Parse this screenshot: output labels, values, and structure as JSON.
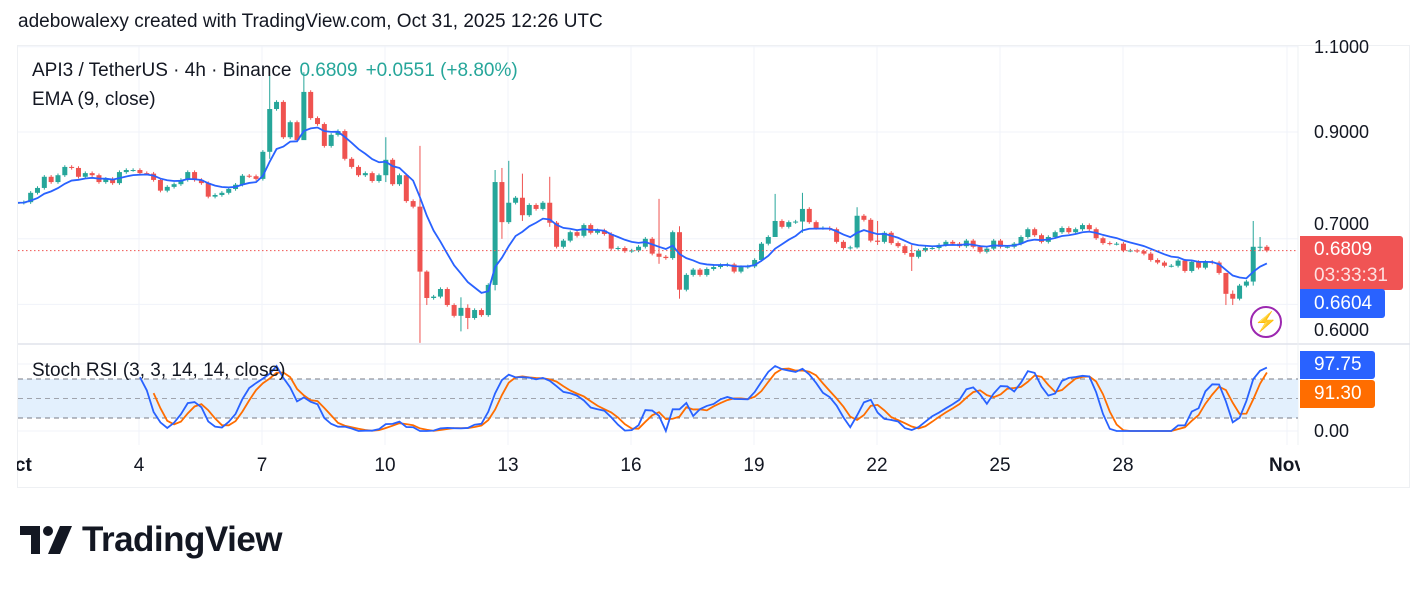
{
  "credit": "adebowalexy created with TradingView.com, Oct 31, 2025 12:26 UTC",
  "legend": {
    "symbol": "API3 / TetherUS · 4h · Binance",
    "last": "0.6809",
    "change": "+0.0551 (+8.80%)",
    "ema": "EMA (9, close)",
    "stoch": "Stoch RSI (3, 3, 14, 14, close)"
  },
  "price_labels": {
    "last": "0.6809",
    "countdown": "03:33:31",
    "ema": "0.6604",
    "stoch_k": "97.75",
    "stoch_d": "91.30",
    "stoch_zero": "0.00"
  },
  "logo": "TradingView",
  "colors": {
    "up": "#26a69a",
    "down": "#ef5350",
    "ema": "#2962ff",
    "stoch_k": "#2962ff",
    "stoch_d": "#ff6d00",
    "band": "#e3f0fd",
    "alert": "#9c27b0"
  },
  "chart_data": {
    "type": "candlestick",
    "interval": "4h",
    "price_scale": "log",
    "start": "Oct 1, 2025",
    "price_ticks": [
      {
        "label": "1.1000",
        "value": 1.1
      },
      {
        "label": "0.9000",
        "value": 0.9
      },
      {
        "label": "0.7000",
        "value": 0.7
      },
      {
        "label": "0.6000",
        "value": 0.6
      }
    ],
    "time_ticks": [
      {
        "label": "Oct",
        "day": 1
      },
      {
        "label": "4",
        "day": 4
      },
      {
        "label": "7",
        "day": 7
      },
      {
        "label": "10",
        "day": 10
      },
      {
        "label": "13",
        "day": 13
      },
      {
        "label": "16",
        "day": 16
      },
      {
        "label": "19",
        "day": 19
      },
      {
        "label": "22",
        "day": 22
      },
      {
        "label": "25",
        "day": 25
      },
      {
        "label": "28",
        "day": 28
      },
      {
        "label": "Nov",
        "day": 32
      }
    ],
    "close": [
      0.762,
      0.763,
      0.78,
      0.789,
      0.81,
      0.8,
      0.813,
      0.829,
      0.827,
      0.81,
      0.817,
      0.813,
      0.8,
      0.806,
      0.798,
      0.819,
      0.823,
      0.823,
      0.817,
      0.816,
      0.804,
      0.784,
      0.791,
      0.796,
      0.804,
      0.819,
      0.804,
      0.798,
      0.773,
      0.776,
      0.78,
      0.787,
      0.795,
      0.812,
      0.811,
      0.806,
      0.859,
      0.95,
      0.966,
      0.889,
      0.921,
      0.883,
      0.989,
      0.93,
      0.917,
      0.871,
      0.894,
      0.902,
      0.845,
      0.829,
      0.813,
      0.817,
      0.802,
      0.813,
      0.843,
      0.796,
      0.813,
      0.765,
      0.755,
      0.648,
      0.609,
      0.611,
      0.622,
      0.599,
      0.584,
      0.595,
      0.581,
      0.592,
      0.585,
      0.628,
      0.8,
      0.728,
      0.762,
      0.771,
      0.74,
      0.758,
      0.751,
      0.762,
      0.727,
      0.687,
      0.697,
      0.711,
      0.705,
      0.723,
      0.71,
      0.714,
      0.708,
      0.684,
      0.685,
      0.68,
      0.681,
      0.687,
      0.7,
      0.676,
      0.671,
      0.669,
      0.711,
      0.621,
      0.643,
      0.651,
      0.643,
      0.652,
      0.655,
      0.658,
      0.659,
      0.648,
      0.655,
      0.656,
      0.666,
      0.692,
      0.703,
      0.73,
      0.72,
      0.728,
      0.729,
      0.751,
      0.728,
      0.718,
      0.718,
      0.716,
      0.695,
      0.685,
      0.686,
      0.739,
      0.732,
      0.697,
      0.695,
      0.71,
      0.693,
      0.688,
      0.677,
      0.671,
      0.681,
      0.685,
      0.685,
      0.69,
      0.695,
      0.692,
      0.688,
      0.697,
      0.687,
      0.679,
      0.684,
      0.697,
      0.687,
      0.687,
      0.692,
      0.703,
      0.716,
      0.706,
      0.695,
      0.703,
      0.711,
      0.718,
      0.711,
      0.716,
      0.723,
      0.716,
      0.701,
      0.693,
      0.692,
      0.692,
      0.681,
      0.681,
      0.68,
      0.676,
      0.666,
      0.662,
      0.657,
      0.657,
      0.665,
      0.649,
      0.663,
      0.654,
      0.663,
      0.662,
      0.646,
      0.615,
      0.608,
      0.627,
      0.633,
      0.687,
      0.687,
      0.6809
    ],
    "wicks": {
      "37": [
        1.029,
        0.845
      ],
      "42": [
        1.036,
        0.93
      ],
      "54": [
        0.889,
        0.8
      ],
      "59": [
        0.871,
        0.548
      ],
      "60": [
        0.65,
        0.599
      ],
      "65": [
        0.61,
        0.563
      ],
      "66": [
        0.6,
        0.566
      ],
      "70": [
        0.823,
        0.62
      ],
      "71": [
        0.827,
        0.7
      ],
      "72": [
        0.841,
        0.725
      ],
      "74": [
        0.816,
        0.73
      ],
      "78": [
        0.81,
        0.72
      ],
      "94": [
        0.769,
        0.66
      ],
      "97": [
        0.721,
        0.608
      ],
      "111": [
        0.778,
        0.715
      ],
      "115": [
        0.78,
        0.71
      ],
      "123": [
        0.754,
        0.684
      ],
      "126": [
        0.73,
        0.69
      ],
      "131": [
        0.69,
        0.649
      ],
      "177": [
        0.646,
        0.599
      ],
      "178": [
        0.62,
        0.599
      ],
      "181": [
        0.73,
        0.627
      ],
      "182": [
        0.703,
        0.68
      ]
    },
    "ema_period": 9,
    "stoch_rsi": {
      "k": 3,
      "d": 3,
      "rsi_length": 14,
      "stoch_length": 14,
      "bands": [
        80,
        50,
        20
      ],
      "range": [
        0,
        100
      ]
    }
  }
}
